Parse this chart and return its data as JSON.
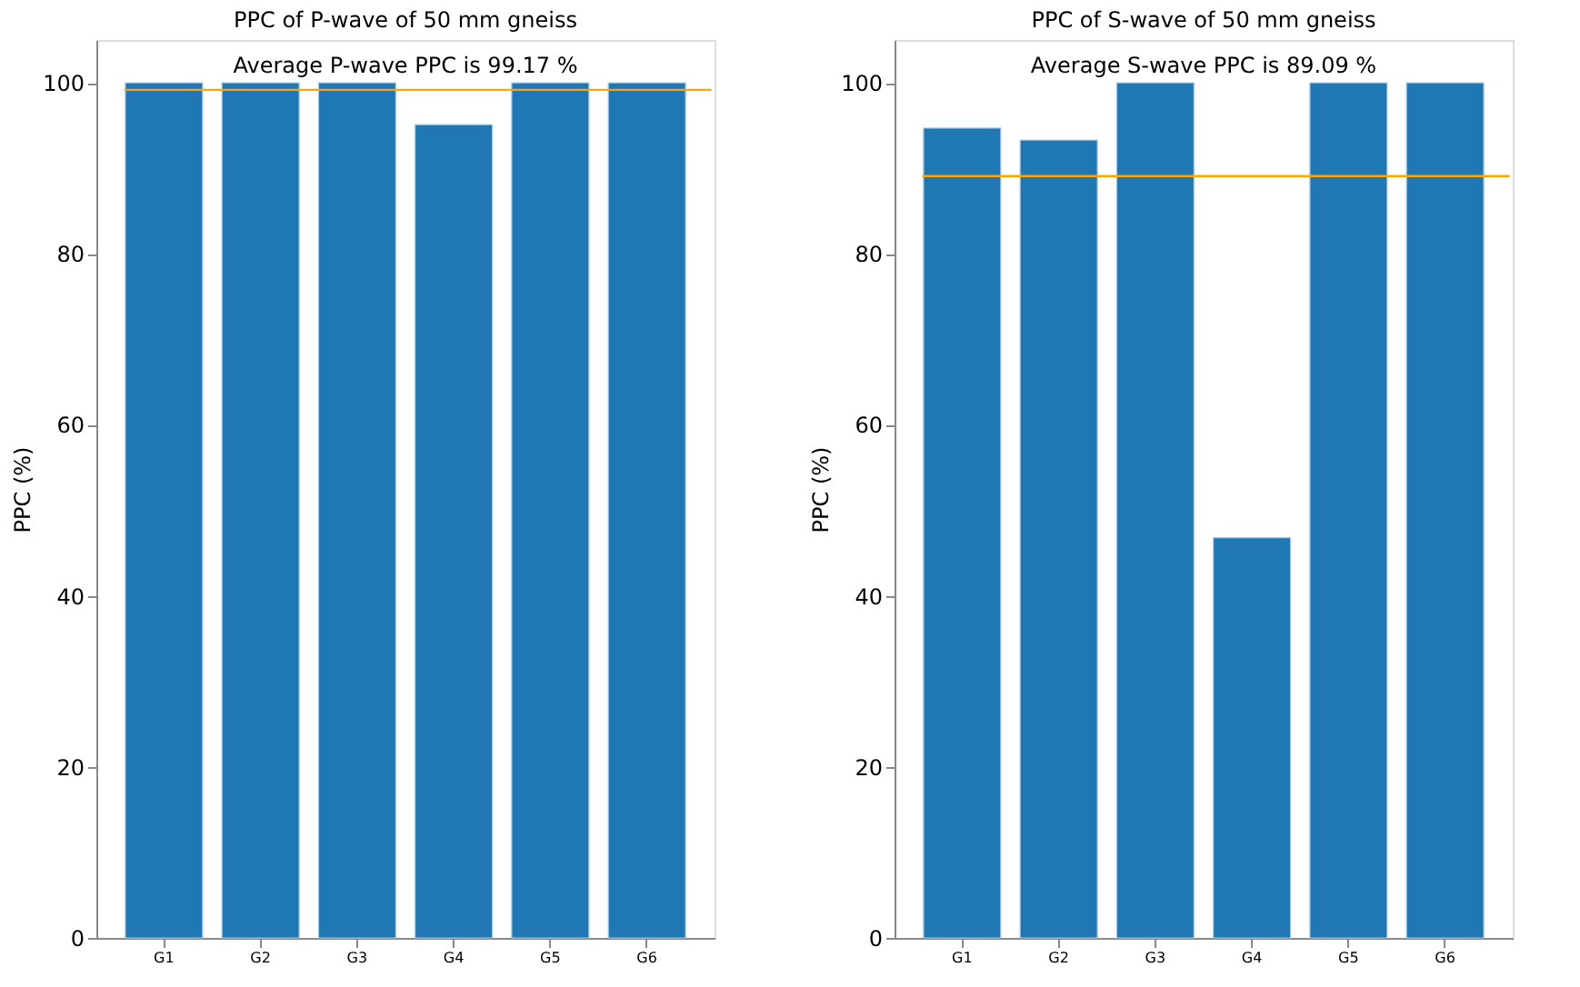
{
  "chart_data": [
    {
      "type": "bar",
      "title": "PPC of P-wave of 50 mm gneiss",
      "ylabel": "PPC (%)",
      "categories": [
        "G1",
        "G2",
        "G3",
        "G4",
        "G5",
        "G6"
      ],
      "values": [
        100,
        100,
        100,
        95.1,
        100,
        100
      ],
      "color": "#1f77b4",
      "ylim": [
        0,
        105
      ],
      "yticks": [
        0,
        20,
        40,
        60,
        80,
        100
      ],
      "annotations": [
        "Average P-wave PPC is 99.17 %"
      ],
      "ref_lines": [
        {
          "axis": "y",
          "value": 99.17,
          "color": "#ffa500"
        }
      ]
    },
    {
      "type": "bar",
      "title": "PPC of S-wave of 50 mm gneiss",
      "ylabel": "PPC (%)",
      "categories": [
        "G1",
        "G2",
        "G3",
        "G4",
        "G5",
        "G6"
      ],
      "values": [
        94.7,
        93.3,
        100,
        46.8,
        100,
        100
      ],
      "color": "#1f77b4",
      "ylim": [
        0,
        105
      ],
      "yticks": [
        0,
        20,
        40,
        60,
        80,
        100
      ],
      "annotations": [
        "Average S-wave PPC is 89.09 %"
      ],
      "ref_lines": [
        {
          "axis": "y",
          "value": 89.09,
          "color": "#ffa500"
        }
      ]
    }
  ]
}
